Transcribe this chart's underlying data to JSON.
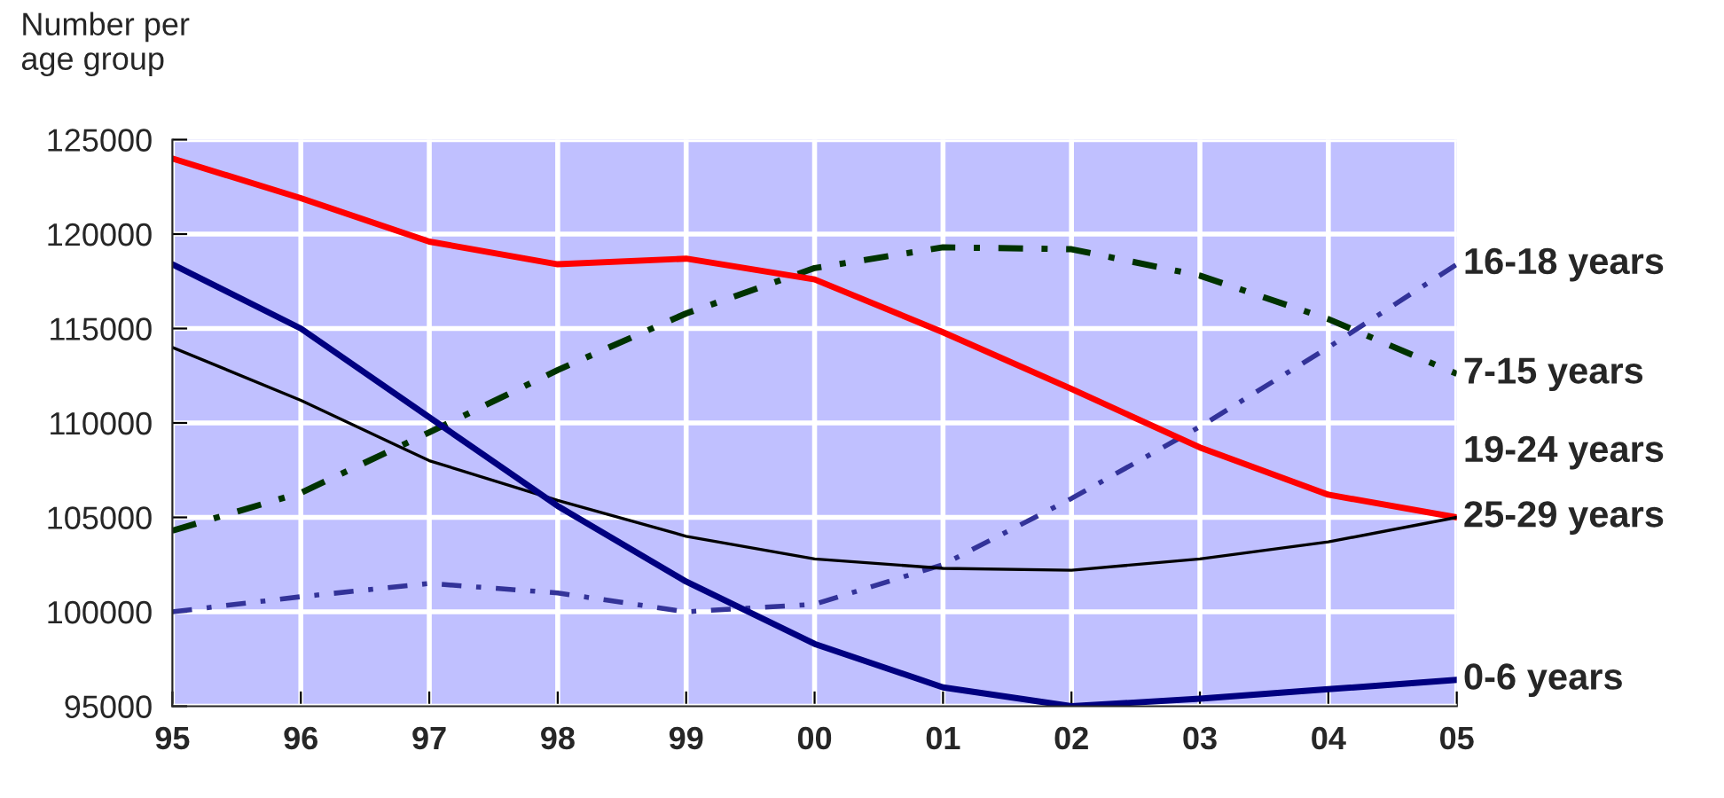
{
  "chart_data": {
    "type": "line",
    "ylabel": "Number per\nage group",
    "categories": [
      "95",
      "96",
      "97",
      "98",
      "99",
      "00",
      "01",
      "02",
      "03",
      "04",
      "05"
    ],
    "series": [
      {
        "name": "16-18 years",
        "color": "#333399",
        "line_style": "dashed",
        "values": [
          100000,
          100800,
          101500,
          101000,
          100000,
          100400,
          102500,
          106000,
          109800,
          114000,
          118400
        ]
      },
      {
        "name": "7-15 years",
        "color": "#003300",
        "line_style": "dashed",
        "values": [
          104300,
          106300,
          109500,
          112800,
          115800,
          118200,
          119300,
          119200,
          117800,
          115500,
          112600
        ]
      },
      {
        "name": "25-29 years",
        "color": "#ff0000",
        "line_style": "solid",
        "values": [
          124000,
          121900,
          119600,
          118400,
          118700,
          117600,
          114800,
          111800,
          108700,
          106200,
          105000
        ]
      },
      {
        "name": "19-24 years",
        "color": "#000000",
        "line_style": "solid",
        "values": [
          114000,
          111200,
          108000,
          105900,
          104000,
          102800,
          102300,
          102200,
          102800,
          103700,
          105000
        ]
      },
      {
        "name": "0-6 years",
        "color": "#000080",
        "line_style": "solid",
        "values": [
          118400,
          115000,
          110300,
          105600,
          101600,
          98300,
          96000,
          95000,
          95400,
          95900,
          96400
        ]
      }
    ],
    "ylim": [
      95000,
      125000
    ],
    "yticks": [
      95000,
      100000,
      105000,
      110000,
      115000,
      120000,
      125000
    ],
    "grid": true,
    "legend": false,
    "marker": "none"
  }
}
